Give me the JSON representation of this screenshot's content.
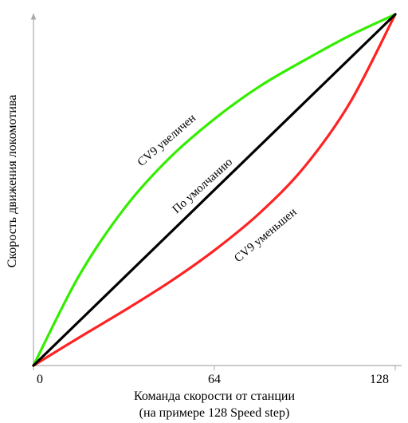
{
  "chart_data": {
    "type": "line",
    "xlabel": "Команда скорости от станции",
    "xlabel_line2": "(на примере 128 Speed step)",
    "ylabel": "Скорость движения локомотива",
    "ticks": [
      "0",
      "64",
      "128"
    ],
    "xlim": [
      0,
      128
    ],
    "ylim": [
      0,
      1
    ],
    "grid": false,
    "legend": "none",
    "series": [
      {
        "name": "CV9 увеличен",
        "color": "#33ee00",
        "x": [
          0,
          16,
          32,
          48,
          64,
          80,
          96,
          112,
          128
        ],
        "y": [
          0,
          0.254,
          0.446,
          0.59,
          0.702,
          0.795,
          0.87,
          0.94,
          1.0
        ]
      },
      {
        "name": "По умолчанию",
        "color": "#000000",
        "x": [
          0,
          128
        ],
        "y": [
          0,
          1.0
        ]
      },
      {
        "name": "CV9 уменьшен",
        "color": "#ff2222",
        "x": [
          0,
          16,
          32,
          48,
          64,
          80,
          96,
          112,
          128
        ],
        "y": [
          0,
          0.079,
          0.156,
          0.237,
          0.328,
          0.434,
          0.567,
          0.749,
          1.0
        ]
      }
    ]
  }
}
